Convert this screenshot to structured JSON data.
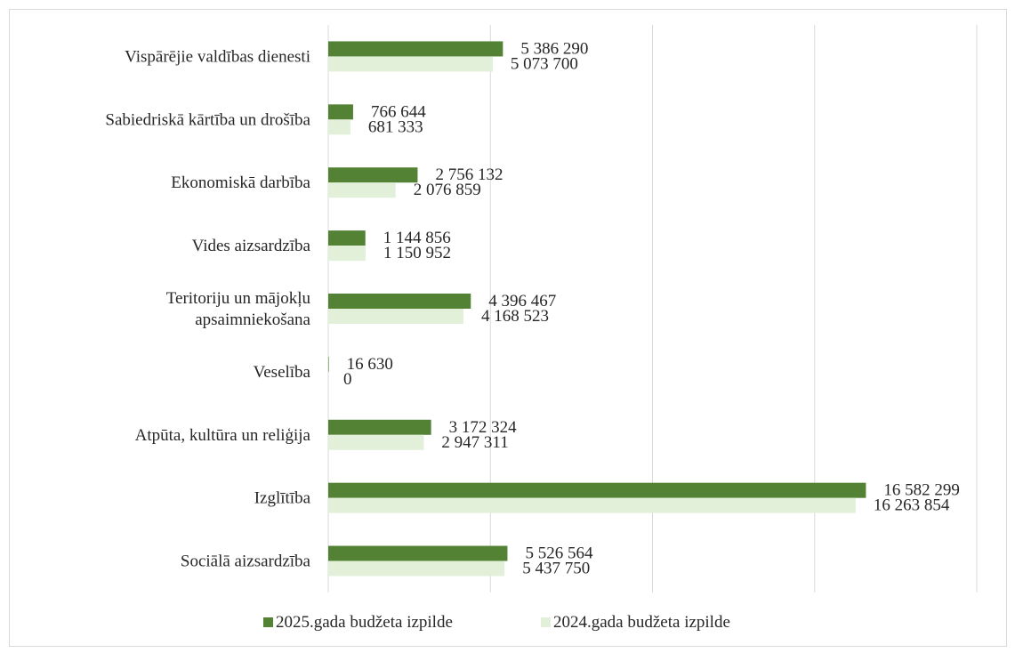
{
  "chart_data": {
    "type": "bar",
    "orientation": "horizontal",
    "categories": [
      [
        "Vispārējie valdības dienesti"
      ],
      [
        "Sabiedriskā kārtība un drošība"
      ],
      [
        "Ekonomiskā darbība"
      ],
      [
        "Vides aizsardzība"
      ],
      [
        "Teritoriju un mājokļu",
        "apsaimniekošana"
      ],
      [
        "Veselība"
      ],
      [
        "Atpūta, kultūra un reliģija"
      ],
      [
        "Izglītība"
      ],
      [
        "Sociālā aizsardzība"
      ]
    ],
    "series": [
      {
        "name": "2025.gada budžeta izpilde",
        "color": "#548235",
        "values": [
          5386290,
          766644,
          2756132,
          1144856,
          4396467,
          16630,
          3172324,
          16582299,
          5526564
        ],
        "labels": [
          "5 386 290",
          "766 644",
          "2 756 132",
          "1 144 856",
          "4 396 467",
          "16 630",
          "3 172 324",
          "16 582 299",
          "5 526 564"
        ]
      },
      {
        "name": "2024.gada budžeta izpilde",
        "color": "#e2f0d9",
        "values": [
          5073700,
          681333,
          2076859,
          1150952,
          4168523,
          0,
          2947311,
          16263854,
          5437750
        ],
        "labels": [
          "5 073 700",
          "681 333",
          "2 076 859",
          "1 150 952",
          "4 168 523",
          "0",
          "2 947 311",
          "16 263 854",
          "5 437 750"
        ]
      }
    ],
    "xlim": [
      0,
      20000000
    ],
    "grid": true,
    "legend_position": "bottom"
  }
}
